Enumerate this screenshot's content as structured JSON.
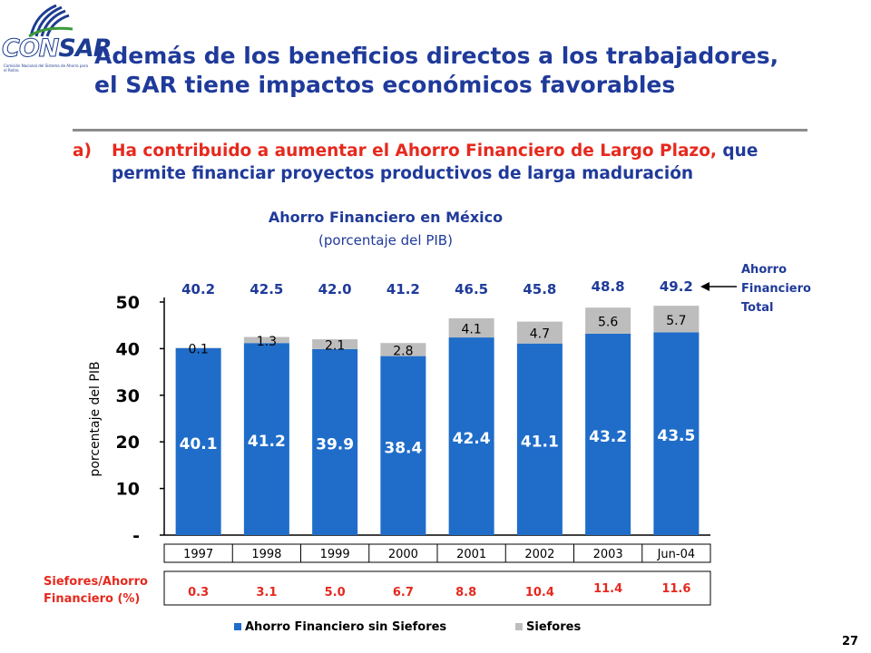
{
  "logo": {
    "name_part1": "CON",
    "name_part2": "SAR",
    "subtitle": "Comisión Nacional del Sistema de Ahorro para el Retiro"
  },
  "title": {
    "line1": "Además de los beneficios directos a los trabajadores,",
    "line2": "el SAR tiene impactos económicos favorables"
  },
  "bullet": {
    "letter": "a)",
    "text_red": "Ha contribuido a aumentar el Ahorro Financiero de Largo Plazo,",
    "text_blue": "que permite financiar proyectos productivos de larga maduración"
  },
  "side_label": {
    "line1": "Ahorro",
    "line2": "Financiero",
    "line3": "Total"
  },
  "siefores_label": {
    "line1": "Siefores/Ahorro",
    "line2": "Financiero (%)"
  },
  "page_number": "27",
  "colors": {
    "blue": "#1f6dc9",
    "gray": "#bdbdbd",
    "title": "#1f3a9a",
    "red": "#e6291e"
  },
  "chart_data": {
    "type": "bar",
    "stacked": true,
    "title": "Ahorro Financiero en México",
    "subtitle": "(porcentaje del PIB)",
    "ylabel": "porcentaje del PIB",
    "ylim": [
      0,
      50
    ],
    "yticks": [
      0,
      10,
      20,
      30,
      40,
      50
    ],
    "ytick_labels": [
      "-",
      "10",
      "20",
      "30",
      "40",
      "50"
    ],
    "categories": [
      "1997",
      "1998",
      "1999",
      "2000",
      "2001",
      "2002",
      "2003",
      "Jun-04"
    ],
    "series": [
      {
        "name": "Ahorro Financiero sin Siefores",
        "values": [
          40.1,
          41.2,
          39.9,
          38.4,
          42.4,
          41.1,
          43.2,
          43.5
        ]
      },
      {
        "name": "Siefores",
        "values": [
          0.1,
          1.3,
          2.1,
          2.8,
          4.1,
          4.7,
          5.6,
          5.7
        ]
      }
    ],
    "total_labels": [
      "40.2",
      "42.5",
      "42.0",
      "41.2",
      "46.5",
      "45.8",
      "48.8",
      "49.2"
    ],
    "bottom_labels": [
      "40.1",
      "41.2",
      "39.9",
      "38.4",
      "42.4",
      "41.1",
      "43.2",
      "43.5"
    ],
    "top_labels": [
      "0.1",
      "1.3",
      "2.1",
      "2.8",
      "4.1",
      "4.7",
      "5.6",
      "5.7"
    ],
    "siefores_pct": [
      "0.3",
      "3.1",
      "5.0",
      "6.7",
      "8.8",
      "10.4",
      "11.4",
      "11.6"
    ],
    "legend_position": "bottom"
  }
}
